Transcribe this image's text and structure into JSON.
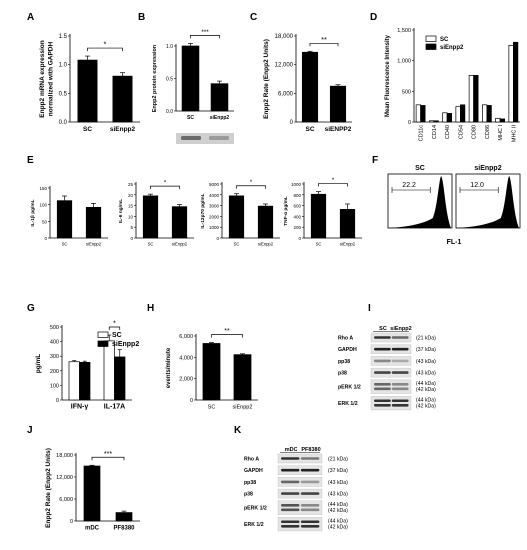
{
  "chart_data": [
    {
      "panel": "A",
      "type": "bar",
      "ylabel": "Enpp2 mRNA expression normalized with GAPDH",
      "categories": [
        "SC",
        "siEnpp2"
      ],
      "values": [
        1.08,
        0.8
      ],
      "errors": [
        0.07,
        0.06
      ],
      "fills": [
        "#000000",
        "#000000"
      ],
      "ylim": [
        0,
        1.5
      ],
      "yticks": [
        "0.0",
        "0.5",
        "1.0",
        "1.5"
      ],
      "ytick_values": [
        0,
        0.5,
        1.0,
        1.5
      ],
      "significance": "*"
    },
    {
      "panel": "B",
      "type": "bar",
      "ylabel": "Enpp2 protein expression",
      "categories": [
        "SC",
        "siEnpp2"
      ],
      "values": [
        1.0,
        0.42
      ],
      "errors": [
        0.04,
        0.04
      ],
      "fills": [
        "#000000",
        "#000000"
      ],
      "ylim": [
        0,
        1.0
      ],
      "yticks": [
        "0.0",
        "0.5",
        "1.0"
      ],
      "ytick_values": [
        0,
        0.5,
        1.0
      ],
      "significance": "***"
    },
    {
      "panel": "C",
      "type": "bar",
      "ylabel": "Enpp2 Rate (Enpp2 Units)",
      "categories": [
        "SC",
        "siENPP2"
      ],
      "values": [
        14600,
        7500
      ],
      "errors": [
        200,
        300
      ],
      "fills": [
        "#000000",
        "#000000"
      ],
      "ylim": [
        0,
        18000
      ],
      "yticks": [
        "0",
        "6,000",
        "12,000",
        "18,000"
      ],
      "ytick_values": [
        0,
        6000,
        12000,
        18000
      ],
      "significance": "**"
    },
    {
      "panel": "D",
      "type": "bar",
      "ylabel": "Mean Fluorescence Intensity",
      "categories": [
        "CD11c",
        "CD14",
        "CD40",
        "CD54",
        "CD80",
        "CD86",
        "MHC I",
        "MHC II"
      ],
      "series": [
        {
          "name": "SC",
          "values": [
            280,
            20,
            150,
            250,
            760,
            280,
            60,
            1250
          ],
          "fill": "#ffffff"
        },
        {
          "name": "siEnpp2",
          "values": [
            270,
            20,
            140,
            280,
            760,
            270,
            50,
            1300
          ],
          "fill": "#000000"
        }
      ],
      "ylim": [
        0,
        1500
      ],
      "yticks": [
        "0",
        "500",
        "1,000",
        "1,500"
      ],
      "ytick_values": [
        0,
        500,
        1000,
        1500
      ],
      "legend": "top-left"
    },
    {
      "panel": "E",
      "type": "bar",
      "ylabel": "IL-1β pg/mL",
      "categories": [
        "SC",
        "siEnpp2"
      ],
      "values": [
        112,
        92
      ],
      "errors": [
        14,
        12
      ],
      "fills": [
        "#000000",
        "#000000"
      ],
      "ylim": [
        0,
        150
      ],
      "yticks": [
        "0",
        "50",
        "100",
        "150"
      ],
      "ytick_values": [
        0,
        50,
        100,
        150
      ],
      "significance": ""
    },
    {
      "panel": "E",
      "type": "bar",
      "ylabel": "IL-6 ng/mL",
      "categories": [
        "SC",
        "siEnpp2"
      ],
      "values": [
        19.5,
        14.5
      ],
      "errors": [
        0.8,
        1.0
      ],
      "fills": [
        "#000000",
        "#000000"
      ],
      "ylim": [
        0,
        25
      ],
      "yticks": [
        "0",
        "5",
        "10",
        "15",
        "20",
        "25"
      ],
      "ytick_values": [
        0,
        5,
        10,
        15,
        20,
        25
      ],
      "significance": "*"
    },
    {
      "panel": "E",
      "type": "bar",
      "ylabel": "IL-12p70 pg/mL",
      "categories": [
        "SC",
        "siEnpp2"
      ],
      "values": [
        3900,
        2950
      ],
      "errors": [
        200,
        200
      ],
      "fills": [
        "#000000",
        "#000000"
      ],
      "ylim": [
        0,
        5000
      ],
      "yticks": [
        "0",
        "1000",
        "2000",
        "3000",
        "4000",
        "5000"
      ],
      "ytick_values": [
        0,
        1000,
        2000,
        3000,
        4000,
        5000
      ],
      "significance": "*"
    },
    {
      "panel": "E",
      "type": "bar",
      "ylabel": "TNF-α pg/mL",
      "categories": [
        "SC",
        "siEnpp2"
      ],
      "values": [
        810,
        530
      ],
      "errors": [
        50,
        100
      ],
      "fills": [
        "#000000",
        "#000000"
      ],
      "ylim": [
        0,
        1000
      ],
      "yticks": [
        "0",
        "200",
        "400",
        "600",
        "800",
        "1000"
      ],
      "ytick_values": [
        0,
        200,
        400,
        600,
        800,
        1000
      ],
      "significance": "*"
    },
    {
      "panel": "G",
      "type": "bar",
      "ylabel": "pg/mL",
      "categories": [
        "IFN-γ",
        "IL-17A"
      ],
      "series": [
        {
          "name": "SC",
          "values": [
            262,
            405
          ],
          "errors": [
            8,
            40
          ],
          "fill": "#ffffff"
        },
        {
          "name": "siEnpp2",
          "values": [
            258,
            295
          ],
          "errors": [
            8,
            50
          ],
          "fill": "#000000"
        }
      ],
      "ylim": [
        0,
        500
      ],
      "yticks": [
        "0",
        "100",
        "200",
        "300",
        "400",
        "500"
      ],
      "ytick_values": [
        0,
        100,
        200,
        300,
        400,
        500
      ],
      "significance": "*",
      "legend": "top-right"
    },
    {
      "panel": "H",
      "type": "bar",
      "ylabel": "events/minute",
      "categories": [
        "SC",
        "siEnpp2"
      ],
      "values": [
        5300,
        4250
      ],
      "errors": [
        80,
        80
      ],
      "fills": [
        "#000000",
        "#000000"
      ],
      "ylim": [
        0,
        6000
      ],
      "yticks": [
        "0",
        "2,000",
        "4,000",
        "6,000"
      ],
      "ytick_values": [
        0,
        2000,
        4000,
        6000
      ],
      "significance": "**"
    },
    {
      "panel": "J",
      "type": "bar",
      "ylabel": "Enpp2 Rate (Enpp2 Units)",
      "categories": [
        "mDC",
        "PF8380"
      ],
      "values": [
        15000,
        2300
      ],
      "errors": [
        200,
        400
      ],
      "fills": [
        "#000000",
        "#000000"
      ],
      "ylim": [
        0,
        18000
      ],
      "yticks": [
        "0",
        "6,000",
        "12,000",
        "18,000"
      ],
      "ytick_values": [
        0,
        6000,
        12000,
        18000
      ],
      "significance": "***"
    }
  ],
  "panel_letters": [
    "A",
    "B",
    "C",
    "D",
    "E",
    "F",
    "G",
    "H",
    "I",
    "J",
    "K"
  ],
  "flow": {
    "panels": [
      {
        "label": "SC",
        "gate_value": "22.2"
      },
      {
        "label": "siEnpp2",
        "gate_value": "12.0"
      }
    ],
    "xlabel": "FL-1"
  },
  "blot_I": {
    "lane_labels": [
      "SC",
      "siEnpp2"
    ],
    "rows": [
      {
        "name": "Rho A",
        "size": "(21 kDa)"
      },
      {
        "name": "GAPDH",
        "size": "(37 kDa)"
      },
      {
        "name": "pp38",
        "size": "(43 kDa)"
      },
      {
        "name": "p38",
        "size": "(43 kDa)"
      },
      {
        "name": "pERK 1/2",
        "size": "(44 kDa)\n(42 kDa)"
      },
      {
        "name": "ERK 1/2",
        "size": "(44 kDa)\n(42 kDa)"
      }
    ]
  },
  "blot_K": {
    "lane_labels": [
      "mDC",
      "PF8380"
    ],
    "rows": [
      {
        "name": "Rho A",
        "size": "(21 kDa)"
      },
      {
        "name": "GAPDH",
        "size": "(37 kDa)"
      },
      {
        "name": "pp38",
        "size": "(43 kDa)"
      },
      {
        "name": "p38",
        "size": "(43 kDa)"
      },
      {
        "name": "pERK 1/2",
        "size": "(44 kDa)\n(42 kDa)"
      },
      {
        "name": "ERK 1/2",
        "size": "(44 kDa)\n(42 kDa)"
      }
    ]
  },
  "blot_B": {
    "lane_labels": [
      "SC",
      "siEnpp2"
    ]
  }
}
